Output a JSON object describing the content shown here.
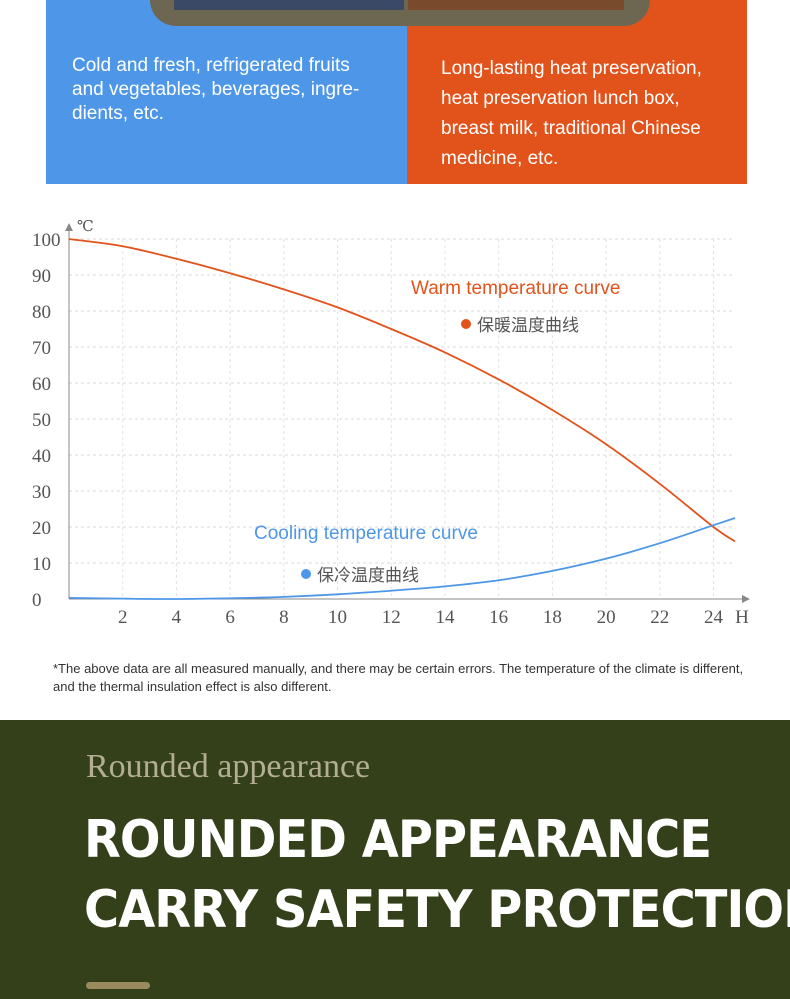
{
  "top": {
    "left_text": "Cold and fresh, refrigerated fruits and vegetables, beverages, ingre- dients, etc.",
    "left_lines": [
      "Cold and fresh, refrigerated fruits",
      "and vegetables, beverages, ingre-",
      "dients, etc."
    ],
    "right_lines": [
      "Long-lasting heat preservation,",
      "heat preservation lunch box,",
      "breast milk, traditional Chinese",
      "medicine, etc."
    ],
    "colors": {
      "blue": "#4E97E8",
      "orange": "#E2531C"
    }
  },
  "chart_data": {
    "type": "line",
    "y_unit": "℃",
    "x_unit": "H",
    "xlim": [
      0,
      24.8
    ],
    "ylim": [
      0,
      100
    ],
    "x_ticks": [
      2,
      4,
      6,
      8,
      10,
      12,
      14,
      16,
      18,
      20,
      22,
      24
    ],
    "y_ticks": [
      0,
      10,
      20,
      30,
      40,
      50,
      60,
      70,
      80,
      90,
      100
    ],
    "grid": true,
    "series": [
      {
        "name": "Warm temperature curve",
        "name_cn": "保暖温度曲线",
        "color": "#E2531C",
        "x": [
          0,
          2,
          4,
          6,
          8,
          10,
          12,
          14,
          16,
          18,
          20,
          22,
          24,
          24.8
        ],
        "y": [
          100,
          98,
          94.5,
          90.5,
          86,
          81,
          75,
          68.5,
          61,
          52.5,
          43,
          32,
          20,
          16
        ]
      },
      {
        "name": "Cooling temperature curve",
        "name_cn": "保冷温度曲线",
        "color": "#4E97E8",
        "x": [
          0,
          2,
          4,
          6,
          8,
          10,
          12,
          14,
          16,
          18,
          20,
          22,
          24,
          24.8
        ],
        "y": [
          0.3,
          0.1,
          0,
          0.2,
          0.6,
          1.3,
          2.3,
          3.5,
          5.2,
          7.8,
          11.2,
          15.5,
          20.5,
          22.5
        ]
      }
    ]
  },
  "note": "*The above data are all measured manually, and there may be certain errors. The temperature of the climate is different, and the thermal insulation effect is also different.",
  "section": {
    "subtitle": "Rounded appearance",
    "headline_1": "ROUNDED APPEARANCE",
    "headline_2": "CARRY SAFETY PROTECTION",
    "bg_color": "#344019"
  }
}
